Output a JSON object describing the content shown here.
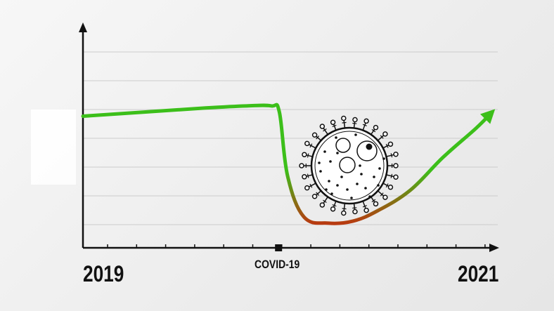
{
  "chart_data": {
    "type": "line",
    "title": "",
    "xlabel": "",
    "ylabel": "",
    "x_tick_labels": [
      "2019",
      "COVID-19",
      "2021"
    ],
    "x_tick_positions": [
      0,
      0.478,
      1
    ],
    "xlim": [
      0,
      1
    ],
    "ylim": [
      0,
      1
    ],
    "grid": true,
    "legend": "none",
    "series": [
      {
        "x": [
          0,
          0.15,
          0.3,
          0.4,
          0.46,
          0.48,
          0.5,
          0.54,
          0.6,
          0.66,
          0.72,
          0.8,
          0.88,
          0.96,
          1.0
        ],
        "values": [
          0.64,
          0.66,
          0.68,
          0.69,
          0.69,
          0.66,
          0.35,
          0.15,
          0.12,
          0.13,
          0.18,
          0.28,
          0.44,
          0.58,
          0.66
        ],
        "color_start": "#3cbf1a",
        "color_dip": "#b83a10",
        "arrow_end": true
      }
    ],
    "colors": {
      "axis": "#111111",
      "grid": "#cccccc",
      "line_green": "#3cbf1a",
      "line_red": "#b83a10"
    }
  },
  "icons": {
    "virus": "virus-icon"
  }
}
